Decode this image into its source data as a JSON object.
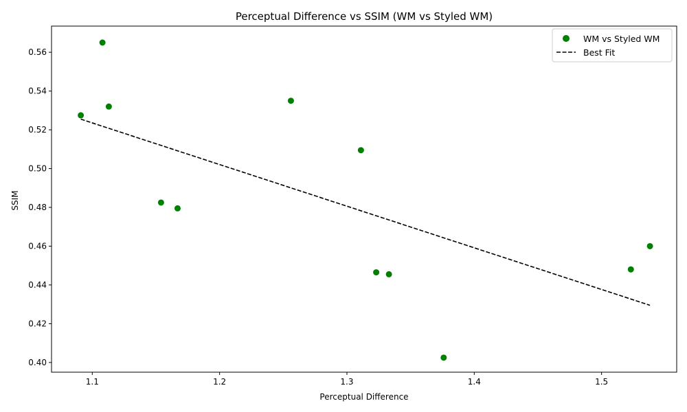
{
  "chart_data": {
    "type": "scatter",
    "title": "Perceptual Difference vs SSIM (WM vs Styled WM)",
    "xlabel": "Perceptual Difference",
    "ylabel": "SSIM",
    "xlim": [
      1.068,
      1.559
    ],
    "ylim": [
      0.395,
      0.5735
    ],
    "xticks": [
      1.1,
      1.2,
      1.3,
      1.4,
      1.5
    ],
    "xtick_labels": [
      "1.1",
      "1.2",
      "1.3",
      "1.4",
      "1.5"
    ],
    "yticks": [
      0.4,
      0.42,
      0.44,
      0.46,
      0.48,
      0.5,
      0.52,
      0.54,
      0.56
    ],
    "ytick_labels": [
      "0.40",
      "0.42",
      "0.44",
      "0.46",
      "0.48",
      "0.50",
      "0.52",
      "0.54",
      "0.56"
    ],
    "grid": false,
    "legend_position": "top-right",
    "series": [
      {
        "name": "WM vs Styled WM",
        "kind": "scatter",
        "color": "#008000",
        "points": [
          {
            "x": 1.091,
            "y": 0.5275
          },
          {
            "x": 1.108,
            "y": 0.565
          },
          {
            "x": 1.113,
            "y": 0.532
          },
          {
            "x": 1.154,
            "y": 0.4825
          },
          {
            "x": 1.167,
            "y": 0.4795
          },
          {
            "x": 1.256,
            "y": 0.535
          },
          {
            "x": 1.311,
            "y": 0.5095
          },
          {
            "x": 1.323,
            "y": 0.4465
          },
          {
            "x": 1.333,
            "y": 0.4455
          },
          {
            "x": 1.376,
            "y": 0.4025
          },
          {
            "x": 1.523,
            "y": 0.448
          },
          {
            "x": 1.538,
            "y": 0.46
          }
        ]
      },
      {
        "name": "Best Fit",
        "kind": "line",
        "style": "dashed",
        "color": "#000000",
        "points": [
          {
            "x": 1.091,
            "y": 0.5255
          },
          {
            "x": 1.538,
            "y": 0.4295
          }
        ]
      }
    ]
  }
}
